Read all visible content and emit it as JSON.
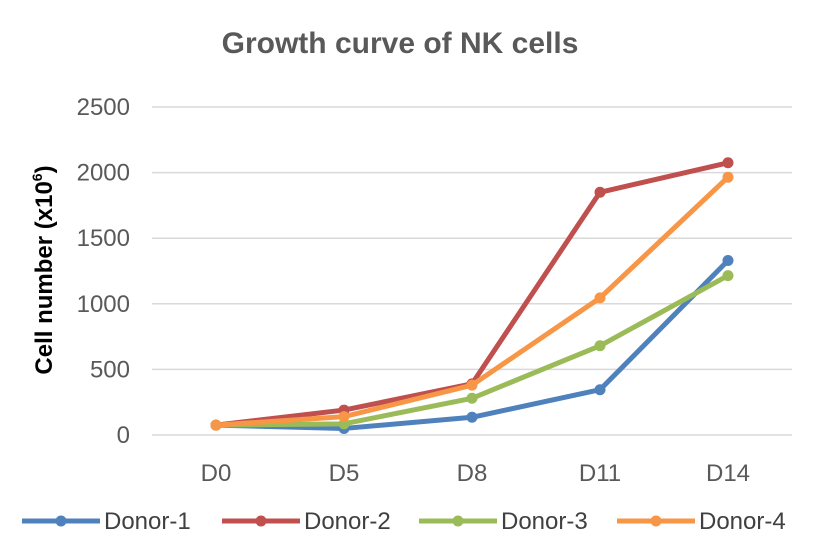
{
  "chart_data": {
    "type": "line",
    "title": "Growth curve of NK cells",
    "xlabel": "",
    "ylabel": "Cell number (x10",
    "ylabel_superscript": "6",
    "ylabel_suffix": ")",
    "categories": [
      "D0",
      "D5",
      "D8",
      "D11",
      "D14"
    ],
    "ylim": [
      0,
      2500
    ],
    "yticks": [
      0,
      500,
      1000,
      1500,
      2000,
      2500
    ],
    "ytick_labels": [
      "0",
      "500",
      "1000",
      "1500",
      "2000",
      "2500"
    ],
    "grid": true,
    "legend_position": "bottom",
    "series": [
      {
        "name": "Donor-1",
        "color": "#4f81bd",
        "values": [
          75,
          50,
          135,
          345,
          1330
        ]
      },
      {
        "name": "Donor-2",
        "color": "#c0504d",
        "values": [
          75,
          190,
          390,
          1850,
          2075
        ]
      },
      {
        "name": "Donor-3",
        "color": "#9bbb59",
        "values": [
          75,
          85,
          280,
          680,
          1215
        ]
      },
      {
        "name": "Donor-4",
        "color": "#f79646",
        "values": [
          75,
          140,
          380,
          1045,
          1965
        ]
      }
    ]
  }
}
